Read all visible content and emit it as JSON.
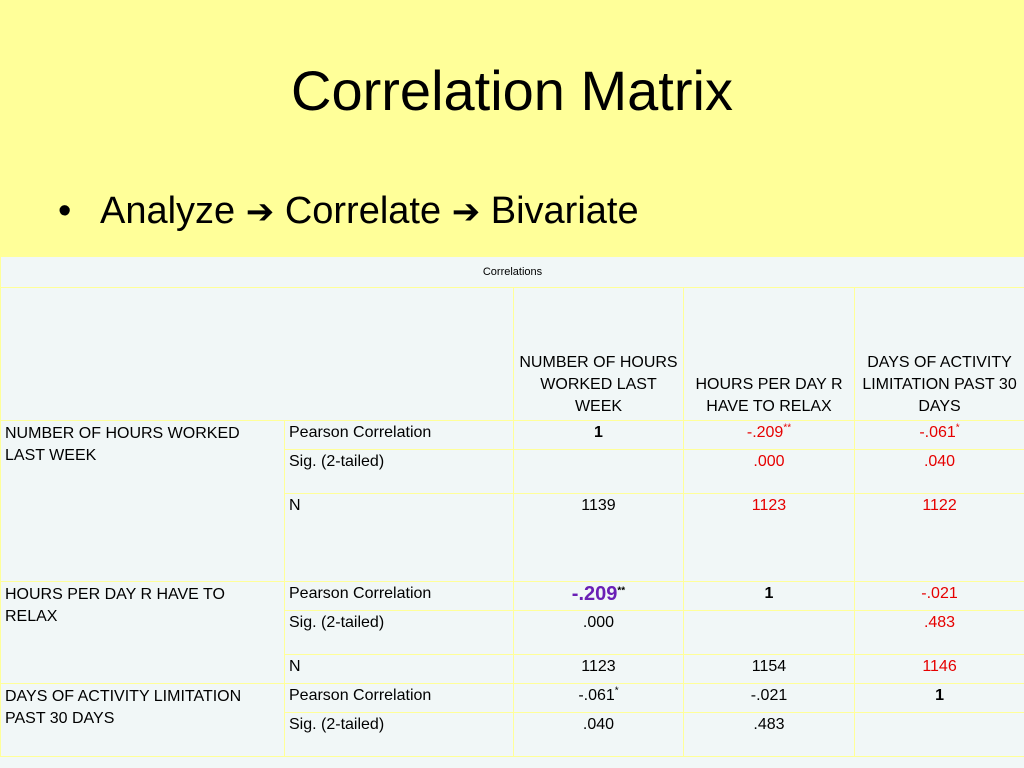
{
  "slide": {
    "title": "Correlation Matrix",
    "bullet": {
      "steps": [
        "Analyze",
        "Correlate",
        "Bivariate"
      ]
    }
  },
  "table": {
    "caption": "Correlations",
    "column_headers": [
      "NUMBER OF HOURS WORKED LAST WEEK",
      "HOURS PER DAY R HAVE TO RELAX",
      "DAYS OF ACTIVITY LIMITATION PAST 30 DAYS"
    ],
    "stat_labels": [
      "Pearson Correlation",
      "Sig. (2-tailed)",
      "N"
    ],
    "rows": [
      {
        "label": "NUMBER OF HOURS WORKED LAST WEEK",
        "pearson": [
          {
            "value": "1",
            "sup": ""
          },
          {
            "value": "-.209",
            "sup": "**"
          },
          {
            "value": "-.061",
            "sup": "*"
          }
        ],
        "sig": [
          "",
          ".000",
          ".040"
        ],
        "n": [
          "1139",
          "1123",
          "1122"
        ]
      },
      {
        "label": "HOURS PER DAY R HAVE TO RELAX",
        "pearson": [
          {
            "value": "-.209",
            "sup": "**"
          },
          {
            "value": "1",
            "sup": ""
          },
          {
            "value": "-.021",
            "sup": ""
          }
        ],
        "sig": [
          ".000",
          "",
          ".483"
        ],
        "n": [
          "1123",
          "1154",
          "1146"
        ]
      },
      {
        "label": "DAYS OF ACTIVITY LIMITATION PAST 30 DAYS",
        "pearson": [
          {
            "value": "-.061",
            "sup": "*"
          },
          {
            "value": "-.021",
            "sup": ""
          },
          {
            "value": "1",
            "sup": ""
          }
        ],
        "sig": [
          ".040",
          ".483",
          ""
        ]
      }
    ]
  },
  "colors": {
    "slide_background": "#ffff99",
    "table_background": "#f1f7f7",
    "highlight_red": "#e60000",
    "highlight_purple": "#6a1fb5"
  },
  "icons": {
    "bullet": "bullet-dot-icon",
    "arrow": "right-arrow-icon"
  }
}
